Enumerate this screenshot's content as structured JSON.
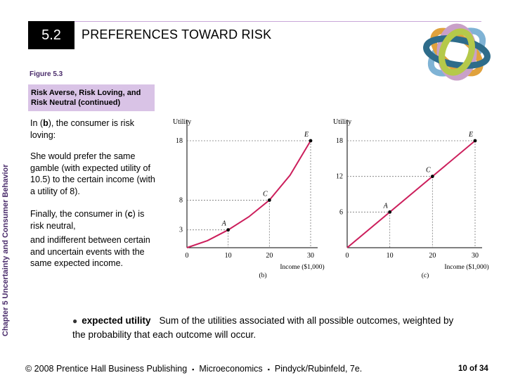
{
  "header": {
    "section_number": "5.2",
    "section_title": "PREFERENCES TOWARD RISK"
  },
  "side_title": "Chapter 5 Uncertainty and Consumer Behavior",
  "figure": {
    "label": "Figure 5.3",
    "caption": "Risk Averse, Risk Loving, and Risk Neutral (continued)"
  },
  "body": {
    "p1_prefix": "In (",
    "p1_bold": "b",
    "p1_suffix": "), the consumer is risk loving:",
    "p2": "She would prefer the same gamble (with expected utility of 10.5) to the certain income (with a utility of 8).",
    "p3_prefix": "Finally, the consumer in (",
    "p3_bold": "c",
    "p3_mid": ") is risk neutral,",
    "p3_rest": "and indifferent between certain and uncertain events with the same expected income."
  },
  "chart_data": [
    {
      "type": "line",
      "panel": "(b)",
      "xlabel": "Income ($1,000)",
      "ylabel": "Utility",
      "xlim": [
        0,
        30
      ],
      "ylim": [
        0,
        18
      ],
      "x_ticks": [
        0,
        10,
        20,
        30
      ],
      "y_ticks": [
        3,
        8,
        18
      ],
      "series": [
        {
          "x": [
            0,
            5,
            10,
            15,
            20,
            25,
            30
          ],
          "y": [
            0,
            1.2,
            3,
            5.2,
            8,
            12.2,
            18
          ]
        }
      ],
      "points": [
        {
          "label": "A",
          "x": 10,
          "y": 3
        },
        {
          "label": "C",
          "x": 20,
          "y": 8
        },
        {
          "label": "E",
          "x": 30,
          "y": 18
        }
      ]
    },
    {
      "type": "line",
      "panel": "(c)",
      "xlabel": "Income ($1,000)",
      "ylabel": "Utility",
      "xlim": [
        0,
        30
      ],
      "ylim": [
        0,
        18
      ],
      "x_ticks": [
        0,
        10,
        20,
        30
      ],
      "y_ticks": [
        6,
        12,
        18
      ],
      "series": [
        {
          "x": [
            0,
            30
          ],
          "y": [
            0,
            18
          ]
        }
      ],
      "points": [
        {
          "label": "A",
          "x": 10,
          "y": 6
        },
        {
          "label": "C",
          "x": 20,
          "y": 12
        },
        {
          "label": "E",
          "x": 30,
          "y": 18
        }
      ]
    }
  ],
  "definition": {
    "term": "expected utility",
    "text": "Sum of the utilities associated with all possible outcomes, weighted by the probability that each outcome will occur."
  },
  "footer": {
    "copyright": "© 2008 Prentice Hall Business Publishing",
    "book": "Microeconomics",
    "authors": "Pindyck/Rubinfeld, 7e.",
    "page": "10 of 34"
  },
  "colors": {
    "curve": "#cc1f5c",
    "accent_purple": "#d9c3e6"
  }
}
